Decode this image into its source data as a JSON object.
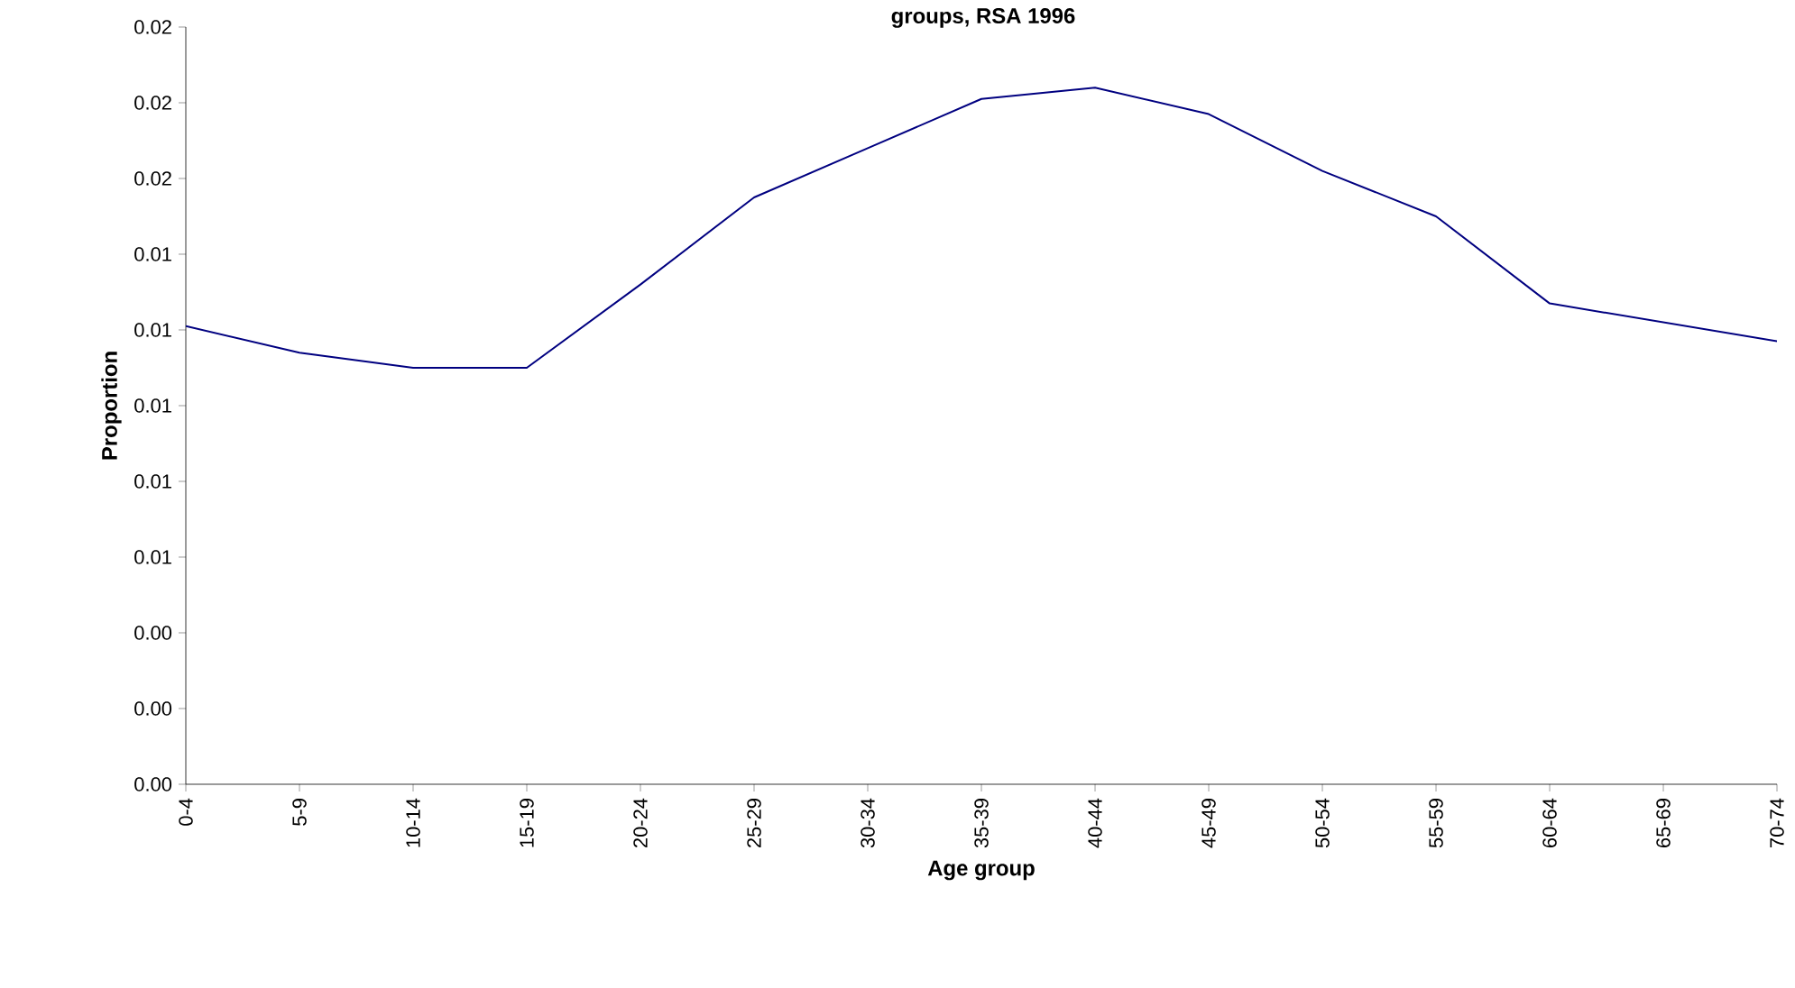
{
  "chart_data": {
    "type": "line",
    "title": "groups, RSA 1996",
    "xlabel": "Age group",
    "ylabel": "Proportion",
    "categories": [
      "0-4",
      "5-9",
      "10-14",
      "15-19",
      "20-24",
      "25-29",
      "30-34",
      "35-39",
      "40-44",
      "45-49",
      "50-54",
      "55-59",
      "60-64",
      "65-69",
      "70-74"
    ],
    "series": [
      {
        "color": "#000080",
        "values": [
          0.0121,
          0.0114,
          0.011,
          0.011,
          0.0132,
          0.0155,
          0.0168,
          0.0181,
          0.0184,
          0.0177,
          0.0162,
          0.015,
          0.0127,
          0.0122,
          0.0117
        ]
      }
    ],
    "ylim": [
      0,
      0.02
    ],
    "yticks": [
      {
        "value": 0,
        "label": "0.00"
      },
      {
        "value": 0.002,
        "label": "0.00"
      },
      {
        "value": 0.004,
        "label": "0.00"
      },
      {
        "value": 0.006,
        "label": "0.01"
      },
      {
        "value": 0.008,
        "label": "0.01"
      },
      {
        "value": 0.01,
        "label": "0.01"
      },
      {
        "value": 0.012,
        "label": "0.01"
      },
      {
        "value": 0.014,
        "label": "0.01"
      },
      {
        "value": 0.016,
        "label": "0.02"
      },
      {
        "value": 0.018,
        "label": "0.02"
      },
      {
        "value": 0.02,
        "label": "0.02"
      }
    ],
    "grid": false,
    "marker": "none",
    "line_style": "solid"
  }
}
